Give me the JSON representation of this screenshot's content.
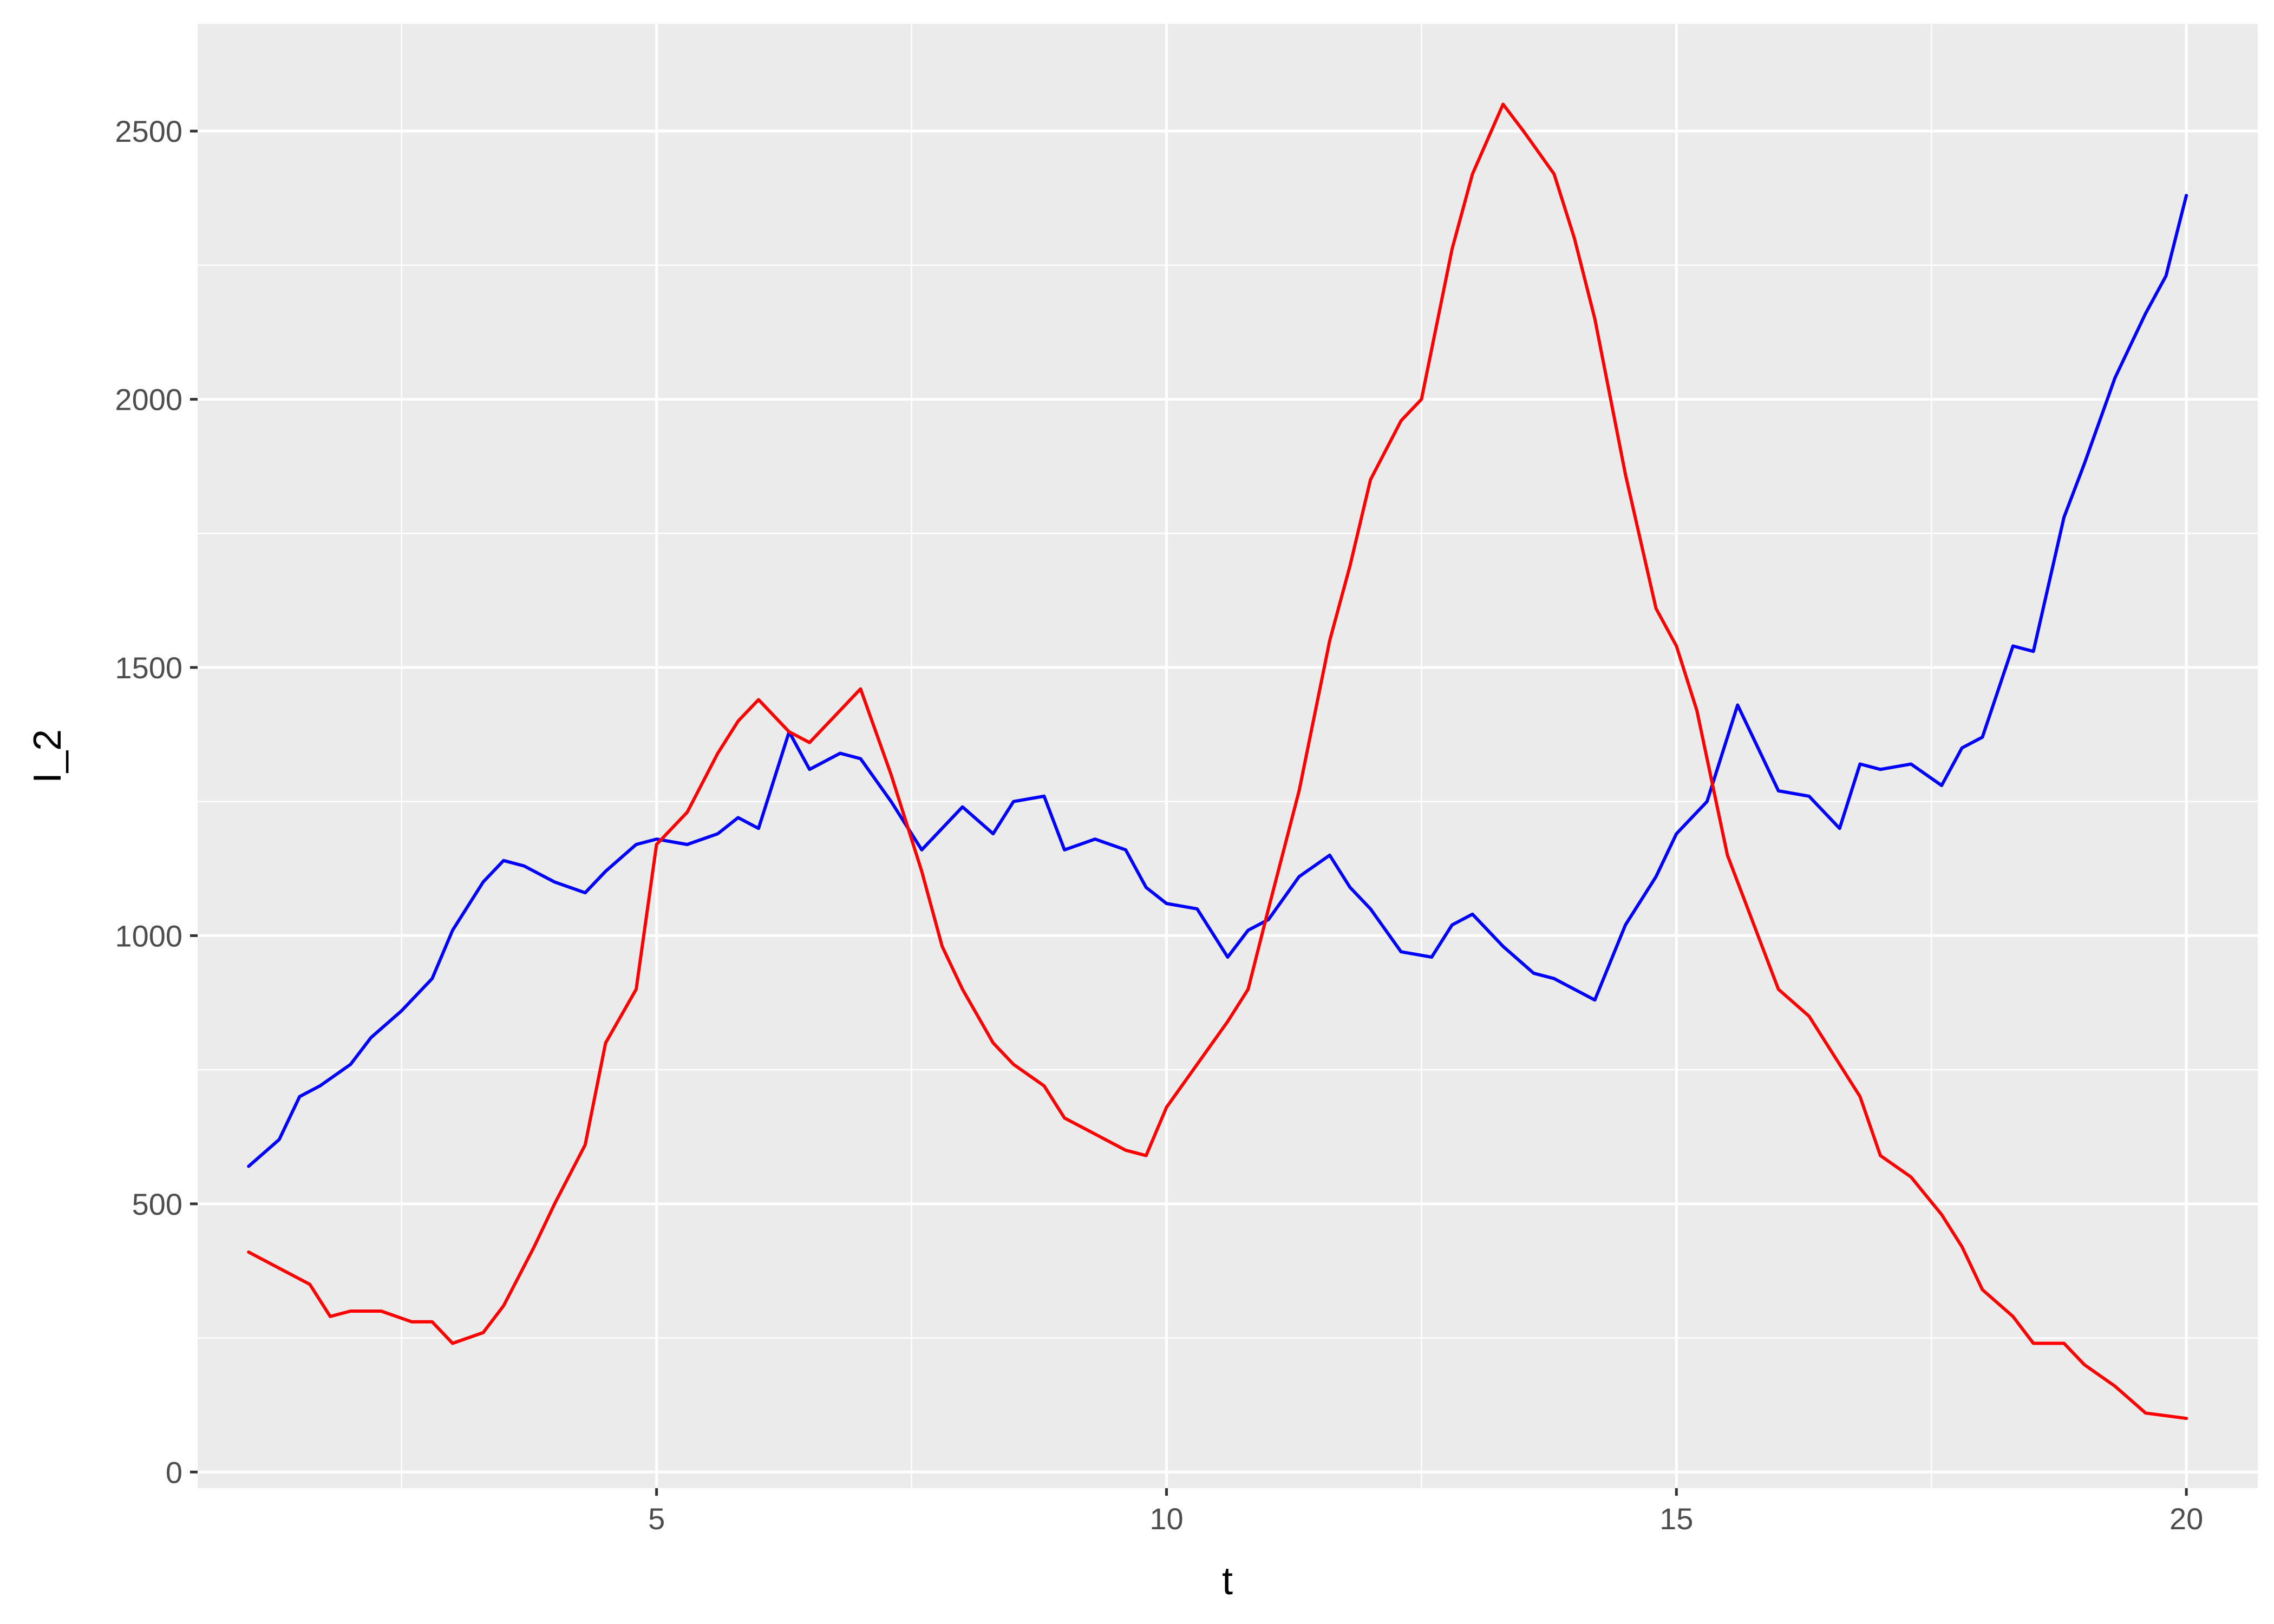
{
  "chart_data": {
    "type": "line",
    "xlabel": "t",
    "ylabel": "I_2",
    "xlim": [
      0.5,
      20.7
    ],
    "ylim": [
      -30,
      2700
    ],
    "x_ticks": [
      5,
      10,
      15,
      20
    ],
    "x_tick_labels": [
      "5",
      "10",
      "15",
      "20"
    ],
    "x_minor_ticks": [
      2.5,
      7.5,
      12.5,
      17.5
    ],
    "y_ticks": [
      0,
      500,
      1000,
      1500,
      2000,
      2500
    ],
    "y_tick_labels": [
      "0",
      "500",
      "1000",
      "1500",
      "2000",
      "2500"
    ],
    "y_minor_ticks": [
      250,
      750,
      1250,
      1750,
      2250
    ],
    "grid": true,
    "panel_background": "#ebebeb",
    "grid_color": "#ffffff",
    "series": [
      {
        "color": "#0000ff",
        "x": [
          1.0,
          1.3,
          1.5,
          1.7,
          2.0,
          2.2,
          2.5,
          2.8,
          3.0,
          3.3,
          3.5,
          3.7,
          4.0,
          4.3,
          4.5,
          4.8,
          5.0,
          5.3,
          5.6,
          5.8,
          6.0,
          6.3,
          6.5,
          6.8,
          7.0,
          7.3,
          7.6,
          8.0,
          8.3,
          8.5,
          8.8,
          9.0,
          9.3,
          9.6,
          9.8,
          10.0,
          10.3,
          10.6,
          10.8,
          11.0,
          11.3,
          11.6,
          11.8,
          12.0,
          12.3,
          12.6,
          12.8,
          13.0,
          13.3,
          13.6,
          13.8,
          14.0,
          14.2,
          14.5,
          14.8,
          15.0,
          15.3,
          15.6,
          15.8,
          16.0,
          16.3,
          16.6,
          16.8,
          17.0,
          17.3,
          17.6,
          17.8,
          18.0,
          18.3,
          18.5,
          18.8,
          19.0,
          19.3,
          19.6,
          19.8,
          20.0
        ],
        "values": [
          570,
          620,
          700,
          720,
          760,
          810,
          860,
          920,
          1010,
          1100,
          1140,
          1130,
          1100,
          1080,
          1120,
          1170,
          1180,
          1170,
          1190,
          1220,
          1200,
          1380,
          1310,
          1340,
          1330,
          1250,
          1160,
          1240,
          1190,
          1250,
          1260,
          1160,
          1180,
          1160,
          1090,
          1060,
          1050,
          960,
          1010,
          1030,
          1110,
          1150,
          1090,
          1050,
          970,
          960,
          1020,
          1040,
          980,
          930,
          920,
          900,
          880,
          1020,
          1110,
          1190,
          1250,
          1430,
          1350,
          1270,
          1260,
          1200,
          1320,
          1310,
          1320,
          1280,
          1350,
          1370,
          1540,
          1530,
          1780,
          1880,
          2040,
          2160,
          2230,
          2380
        ]
      },
      {
        "color": "#ff0000",
        "x": [
          1.0,
          1.3,
          1.6,
          1.8,
          2.0,
          2.3,
          2.6,
          2.8,
          3.0,
          3.3,
          3.5,
          3.8,
          4.0,
          4.3,
          4.5,
          4.8,
          5.0,
          5.3,
          5.6,
          5.8,
          6.0,
          6.3,
          6.5,
          6.8,
          7.0,
          7.3,
          7.6,
          7.8,
          8.0,
          8.3,
          8.5,
          8.8,
          9.0,
          9.3,
          9.6,
          9.8,
          10.0,
          10.3,
          10.6,
          10.8,
          11.0,
          11.3,
          11.6,
          11.8,
          12.0,
          12.3,
          12.5,
          12.8,
          13.0,
          13.3,
          13.5,
          13.8,
          14.0,
          14.2,
          14.5,
          14.8,
          15.0,
          15.2,
          15.5,
          15.8,
          16.0,
          16.3,
          16.6,
          16.8,
          17.0,
          17.3,
          17.6,
          17.8,
          18.0,
          18.3,
          18.5,
          18.8,
          19.0,
          19.3,
          19.6,
          20.0
        ],
        "values": [
          410,
          380,
          350,
          290,
          300,
          300,
          280,
          280,
          240,
          260,
          310,
          420,
          500,
          610,
          800,
          900,
          1170,
          1230,
          1340,
          1400,
          1440,
          1380,
          1360,
          1420,
          1460,
          1300,
          1120,
          980,
          900,
          800,
          760,
          720,
          660,
          630,
          600,
          590,
          680,
          760,
          840,
          900,
          1050,
          1270,
          1550,
          1690,
          1850,
          1960,
          2000,
          2280,
          2420,
          2550,
          2500,
          2420,
          2300,
          2150,
          1860,
          1610,
          1540,
          1420,
          1150,
          1000,
          900,
          850,
          760,
          700,
          590,
          550,
          480,
          420,
          340,
          290,
          240,
          240,
          200,
          160,
          110,
          100
        ]
      }
    ]
  }
}
